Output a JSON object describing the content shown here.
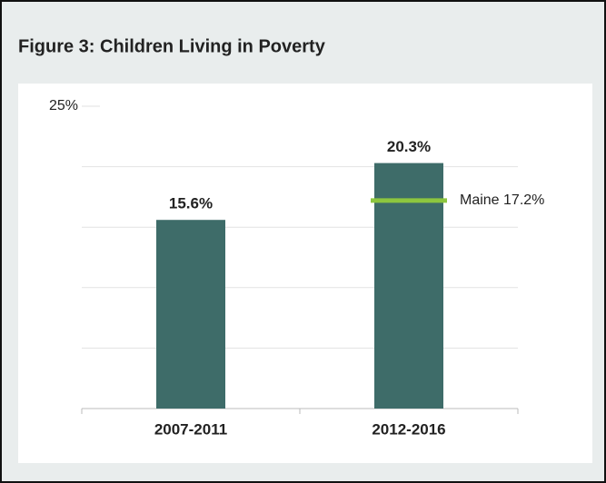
{
  "chart_data": {
    "type": "bar",
    "title": "Figure 3: Children Living in Poverty",
    "categories": [
      "2007-2011",
      "2012-2016"
    ],
    "values": [
      15.6,
      20.3
    ],
    "value_labels": [
      "15.6%",
      "20.3%"
    ],
    "color": "#3e6c69",
    "ylim": [
      0,
      25
    ],
    "yticks": [
      0,
      5,
      10,
      15,
      20,
      {
        "value": 25,
        "label": "25%"
      }
    ],
    "grid": true,
    "reference_line": {
      "name": "Maine",
      "value": 17.2,
      "label": "Maine 17.2%",
      "color": "#8dc63f"
    }
  }
}
